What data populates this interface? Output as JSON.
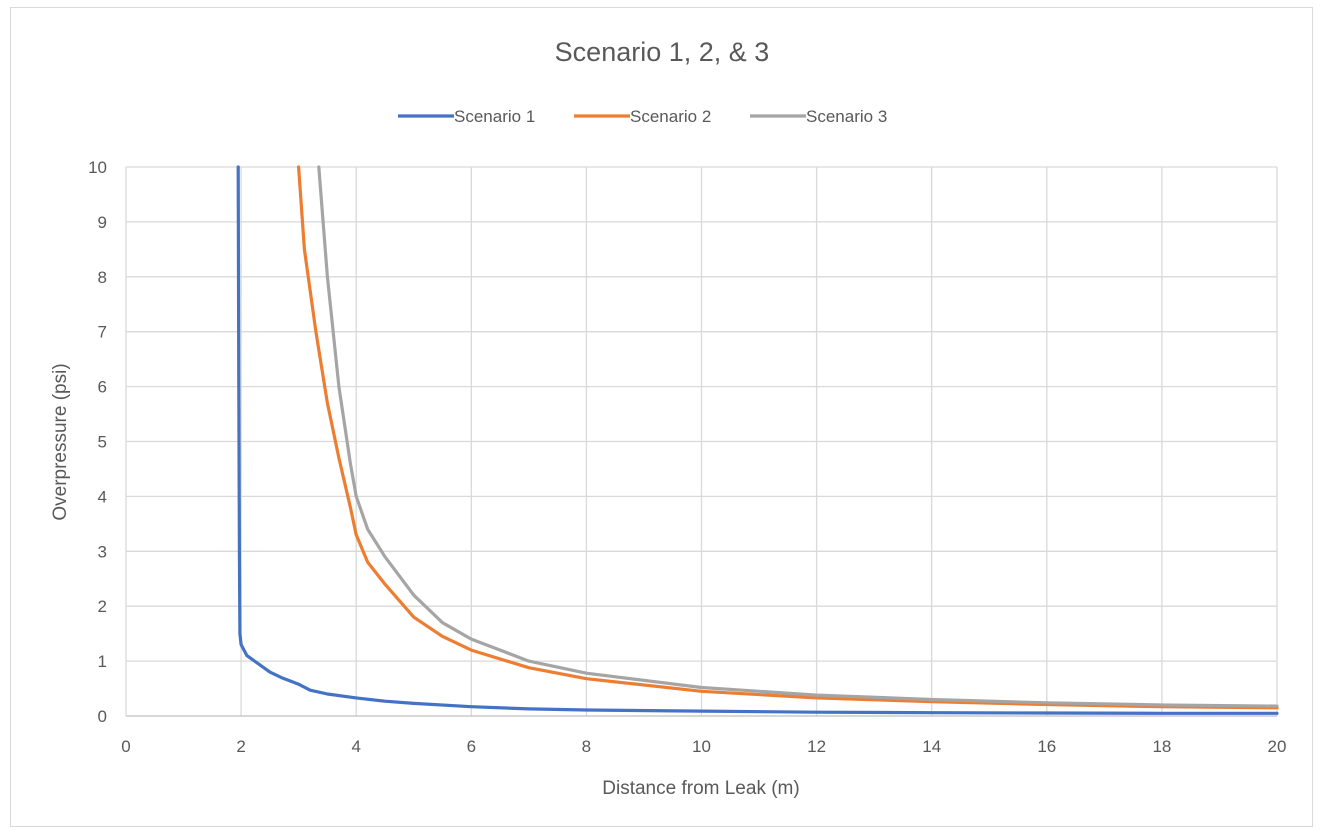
{
  "chart_data": {
    "type": "line",
    "title": "Scenario 1, 2, & 3",
    "xlabel": "Distance from Leak (m)",
    "ylabel": "Overpressure (psi)",
    "xlim": [
      0,
      20
    ],
    "ylim": [
      0,
      10
    ],
    "x_ticks": [
      "0",
      "2",
      "4",
      "6",
      "8",
      "10",
      "12",
      "14",
      "16",
      "18",
      "20"
    ],
    "y_ticks": [
      "0",
      "1",
      "2",
      "3",
      "4",
      "5",
      "6",
      "7",
      "8",
      "9",
      "10"
    ],
    "grid": true,
    "legend_position": "top",
    "series": [
      {
        "name": "Scenario 1",
        "color": "#4472c4",
        "points": [
          [
            1.95,
            10
          ],
          [
            1.96,
            6
          ],
          [
            1.97,
            3
          ],
          [
            1.98,
            1.5
          ],
          [
            2.0,
            1.3
          ],
          [
            2.1,
            1.1
          ],
          [
            2.3,
            0.95
          ],
          [
            2.5,
            0.8
          ],
          [
            2.7,
            0.7
          ],
          [
            2.9,
            0.62
          ],
          [
            3.0,
            0.58
          ],
          [
            3.2,
            0.47
          ],
          [
            3.5,
            0.4
          ],
          [
            4.0,
            0.33
          ],
          [
            4.5,
            0.27
          ],
          [
            5,
            0.23
          ],
          [
            6,
            0.17
          ],
          [
            7,
            0.13
          ],
          [
            8,
            0.11
          ],
          [
            10,
            0.09
          ],
          [
            12,
            0.07
          ],
          [
            14,
            0.06
          ],
          [
            16,
            0.055
          ],
          [
            18,
            0.05
          ],
          [
            20,
            0.05
          ]
        ]
      },
      {
        "name": "Scenario 2",
        "color": "#ed7d31",
        "points": [
          [
            3.0,
            10
          ],
          [
            3.1,
            8.5
          ],
          [
            3.3,
            7
          ],
          [
            3.5,
            5.7
          ],
          [
            3.7,
            4.7
          ],
          [
            3.9,
            3.8
          ],
          [
            4.0,
            3.3
          ],
          [
            4.2,
            2.8
          ],
          [
            4.5,
            2.4
          ],
          [
            5,
            1.8
          ],
          [
            5.5,
            1.45
          ],
          [
            6,
            1.2
          ],
          [
            7,
            0.88
          ],
          [
            8,
            0.68
          ],
          [
            10,
            0.45
          ],
          [
            12,
            0.33
          ],
          [
            14,
            0.26
          ],
          [
            16,
            0.21
          ],
          [
            18,
            0.17
          ],
          [
            20,
            0.15
          ]
        ]
      },
      {
        "name": "Scenario 3",
        "color": "#a5a5a5",
        "points": [
          [
            3.35,
            10
          ],
          [
            3.5,
            8
          ],
          [
            3.7,
            6
          ],
          [
            3.9,
            4.6
          ],
          [
            4.0,
            4.0
          ],
          [
            4.2,
            3.4
          ],
          [
            4.5,
            2.9
          ],
          [
            5,
            2.2
          ],
          [
            5.5,
            1.7
          ],
          [
            6,
            1.4
          ],
          [
            7,
            1.0
          ],
          [
            8,
            0.78
          ],
          [
            10,
            0.52
          ],
          [
            12,
            0.38
          ],
          [
            14,
            0.3
          ],
          [
            16,
            0.24
          ],
          [
            18,
            0.2
          ],
          [
            20,
            0.18
          ]
        ]
      }
    ]
  }
}
